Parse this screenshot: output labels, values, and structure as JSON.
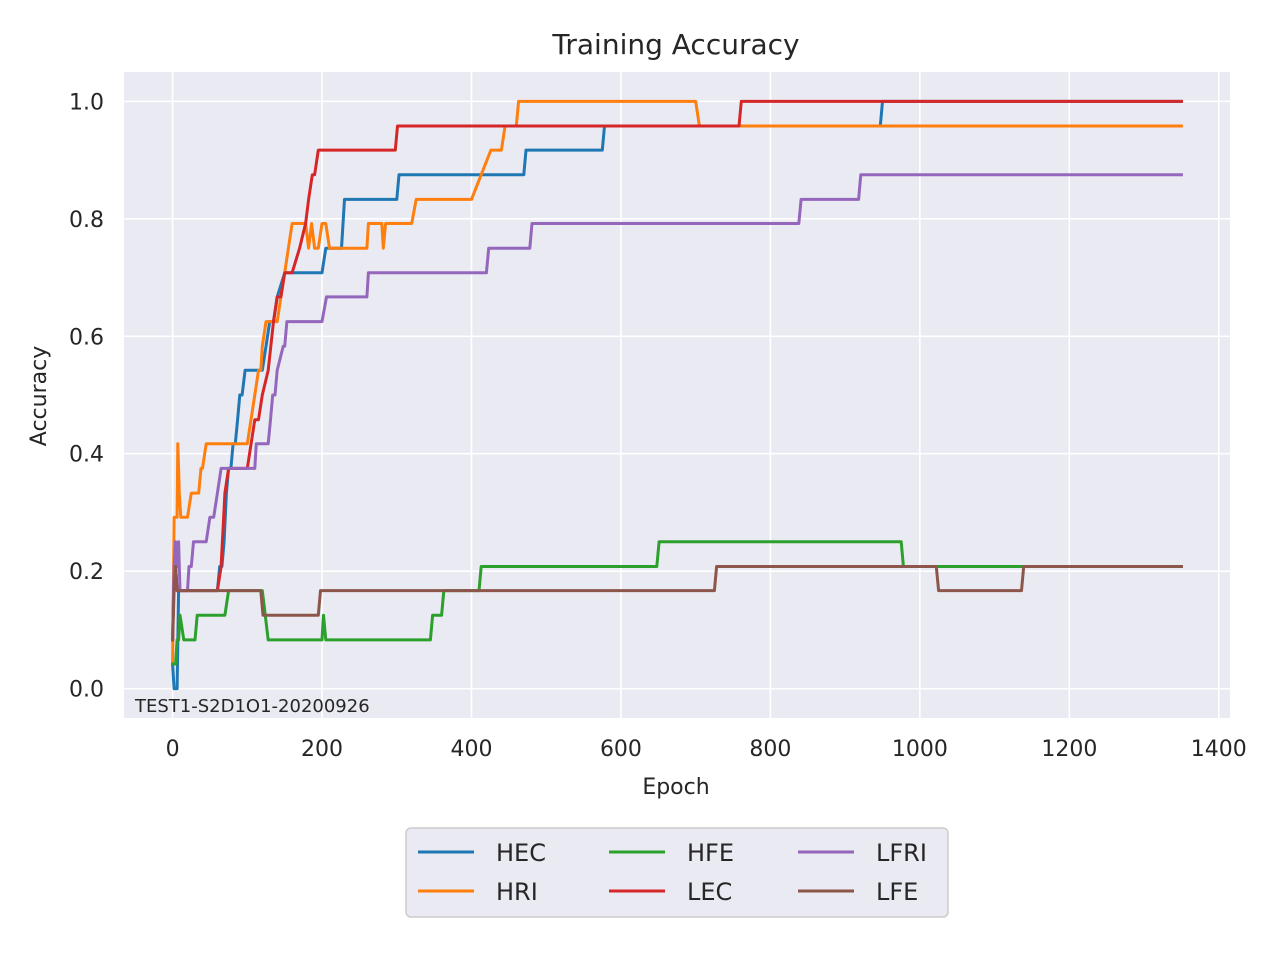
{
  "colors": {
    "background": "#eaeaf2",
    "grid": "#ffffff",
    "text": "#262626",
    "legend_frame": "#cccccc"
  },
  "chart_data": {
    "type": "line",
    "title": "Training Accuracy",
    "xlabel": "Epoch",
    "ylabel": "Accuracy",
    "annotation": "TEST1-S2D1O1-20200926",
    "xlim": [
      -65,
      1415
    ],
    "ylim": [
      -0.05,
      1.05
    ],
    "xticks": [
      0,
      200,
      400,
      600,
      800,
      1000,
      1200,
      1400
    ],
    "yticks": [
      0.0,
      0.2,
      0.4,
      0.6,
      0.8,
      1.0
    ],
    "xtick_labels": [
      "0",
      "200",
      "400",
      "600",
      "800",
      "1000",
      "1200",
      "1400"
    ],
    "ytick_labels": [
      "0.0",
      "0.2",
      "0.4",
      "0.6",
      "0.8",
      "1.0"
    ],
    "grid": true,
    "legend_position": "below-center",
    "legend_columns": 3,
    "series": [
      {
        "name": "HEC",
        "color": "#1f77b4",
        "x": [
          0,
          2,
          4,
          6,
          8,
          10,
          20,
          40,
          60,
          63,
          66,
          69,
          72,
          75,
          78,
          81,
          84,
          87,
          90,
          93,
          97,
          100,
          110,
          120,
          125,
          130,
          135,
          140,
          150,
          160,
          170,
          180,
          190,
          200,
          205,
          210,
          220,
          226,
          230,
          240,
          250,
          260,
          270,
          280,
          290,
          300,
          303,
          320,
          360,
          400,
          420,
          450,
          470,
          473,
          500,
          530,
          550,
          575,
          578,
          600,
          650,
          700,
          750,
          800,
          850,
          900,
          947,
          950,
          1000,
          1100,
          1200,
          1350
        ],
        "y": [
          0.042,
          0.0,
          0.0,
          0.0,
          0.167,
          0.167,
          0.167,
          0.167,
          0.167,
          0.208,
          0.208,
          0.25,
          0.333,
          0.375,
          0.375,
          0.417,
          0.417,
          0.458,
          0.5,
          0.5,
          0.542,
          0.542,
          0.542,
          0.542,
          0.583,
          0.625,
          0.625,
          0.667,
          0.708,
          0.708,
          0.708,
          0.708,
          0.708,
          0.708,
          0.75,
          0.75,
          0.75,
          0.75,
          0.833,
          0.833,
          0.833,
          0.833,
          0.833,
          0.833,
          0.833,
          0.833,
          0.875,
          0.875,
          0.875,
          0.875,
          0.875,
          0.875,
          0.875,
          0.917,
          0.917,
          0.917,
          0.917,
          0.917,
          0.958,
          0.958,
          0.958,
          0.958,
          0.958,
          0.958,
          0.958,
          0.958,
          0.958,
          1.0,
          1.0,
          1.0,
          1.0,
          1.0
        ]
      },
      {
        "name": "HRI",
        "color": "#ff7f0e",
        "x": [
          0,
          2,
          4,
          6,
          7,
          8,
          9,
          11,
          13,
          15,
          20,
          25,
          30,
          35,
          38,
          40,
          45,
          50,
          60,
          70,
          80,
          90,
          100,
          105,
          110,
          115,
          118,
          120,
          125,
          130,
          140,
          145,
          150,
          155,
          160,
          165,
          170,
          175,
          178,
          182,
          186,
          190,
          195,
          200,
          205,
          210,
          220,
          240,
          260,
          262,
          280,
          282,
          285,
          300,
          320,
          326,
          360,
          400,
          426,
          430,
          440,
          445,
          450,
          460,
          463,
          470,
          500,
          600,
          650,
          700,
          705,
          708,
          750,
          800,
          900,
          1000,
          1100,
          1200,
          1350
        ],
        "y": [
          0.042,
          0.292,
          0.292,
          0.292,
          0.417,
          0.375,
          0.333,
          0.292,
          0.292,
          0.292,
          0.292,
          0.333,
          0.333,
          0.333,
          0.375,
          0.375,
          0.417,
          0.417,
          0.417,
          0.417,
          0.417,
          0.417,
          0.417,
          0.458,
          0.5,
          0.542,
          0.542,
          0.583,
          0.625,
          0.625,
          0.625,
          0.667,
          0.708,
          0.75,
          0.792,
          0.792,
          0.792,
          0.792,
          0.792,
          0.75,
          0.792,
          0.75,
          0.75,
          0.792,
          0.792,
          0.75,
          0.75,
          0.75,
          0.75,
          0.792,
          0.792,
          0.75,
          0.792,
          0.792,
          0.792,
          0.833,
          0.833,
          0.833,
          0.917,
          0.917,
          0.917,
          0.958,
          0.958,
          0.958,
          1.0,
          1.0,
          1.0,
          1.0,
          1.0,
          1.0,
          0.958,
          0.958,
          0.958,
          0.958,
          0.958,
          0.958,
          0.958,
          0.958,
          0.958
        ]
      },
      {
        "name": "HFE",
        "color": "#2ca02c",
        "x": [
          0,
          2,
          4,
          6,
          8,
          10,
          15,
          20,
          25,
          30,
          33,
          40,
          50,
          60,
          70,
          75,
          80,
          100,
          110,
          120,
          128,
          140,
          160,
          180,
          200,
          202,
          205,
          220,
          250,
          300,
          330,
          345,
          348,
          355,
          360,
          363,
          380,
          400,
          410,
          413,
          450,
          500,
          550,
          600,
          648,
          651,
          700,
          750,
          800,
          850,
          900,
          950,
          975,
          978,
          1000,
          1050,
          1100,
          1136,
          1139,
          1200,
          1350
        ],
        "y": [
          0.042,
          0.042,
          0.042,
          0.083,
          0.083,
          0.125,
          0.083,
          0.083,
          0.083,
          0.083,
          0.125,
          0.125,
          0.125,
          0.125,
          0.125,
          0.167,
          0.167,
          0.167,
          0.167,
          0.167,
          0.083,
          0.083,
          0.083,
          0.083,
          0.083,
          0.125,
          0.083,
          0.083,
          0.083,
          0.083,
          0.083,
          0.083,
          0.125,
          0.125,
          0.125,
          0.167,
          0.167,
          0.167,
          0.167,
          0.208,
          0.208,
          0.208,
          0.208,
          0.208,
          0.208,
          0.25,
          0.25,
          0.25,
          0.25,
          0.25,
          0.25,
          0.25,
          0.25,
          0.208,
          0.208,
          0.208,
          0.208,
          0.208,
          0.208,
          0.208,
          0.208
        ]
      },
      {
        "name": "LEC",
        "color": "#d62728",
        "x": [
          0,
          2,
          4,
          6,
          8,
          10,
          20,
          30,
          37,
          40,
          50,
          60,
          65,
          70,
          75,
          80,
          90,
          100,
          110,
          115,
          120,
          128,
          135,
          140,
          145,
          150,
          160,
          170,
          178,
          182,
          187,
          190,
          195,
          200,
          240,
          280,
          298,
          301,
          350,
          400,
          450,
          500,
          550,
          600,
          650,
          700,
          750,
          758,
          761,
          800,
          900,
          1000,
          1100,
          1200,
          1350
        ],
        "y": [
          0.083,
          0.208,
          0.208,
          0.167,
          0.167,
          0.167,
          0.167,
          0.167,
          0.167,
          0.167,
          0.167,
          0.167,
          0.208,
          0.333,
          0.375,
          0.375,
          0.375,
          0.375,
          0.458,
          0.458,
          0.5,
          0.542,
          0.625,
          0.667,
          0.667,
          0.708,
          0.708,
          0.75,
          0.792,
          0.833,
          0.875,
          0.875,
          0.917,
          0.917,
          0.917,
          0.917,
          0.917,
          0.958,
          0.958,
          0.958,
          0.958,
          0.958,
          0.958,
          0.958,
          0.958,
          0.958,
          0.958,
          0.958,
          1.0,
          1.0,
          1.0,
          1.0,
          1.0,
          1.0,
          1.0
        ]
      },
      {
        "name": "LFRI",
        "color": "#9467bd",
        "x": [
          0,
          2,
          4,
          6,
          8,
          10,
          15,
          20,
          22,
          25,
          28,
          40,
          45,
          50,
          55,
          60,
          65,
          70,
          80,
          90,
          100,
          110,
          112,
          120,
          128,
          131,
          134,
          137,
          140,
          148,
          150,
          153,
          160,
          180,
          200,
          206,
          220,
          240,
          260,
          262,
          300,
          350,
          400,
          420,
          423,
          450,
          478,
          481,
          500,
          550,
          600,
          650,
          700,
          750,
          800,
          838,
          841,
          870,
          900,
          918,
          921,
          950,
          1000,
          1100,
          1200,
          1350
        ],
        "y": [
          0.083,
          0.208,
          0.25,
          0.208,
          0.25,
          0.167,
          0.167,
          0.167,
          0.208,
          0.208,
          0.25,
          0.25,
          0.25,
          0.292,
          0.292,
          0.333,
          0.375,
          0.375,
          0.375,
          0.375,
          0.375,
          0.375,
          0.417,
          0.417,
          0.417,
          0.458,
          0.5,
          0.5,
          0.542,
          0.583,
          0.583,
          0.625,
          0.625,
          0.625,
          0.625,
          0.667,
          0.667,
          0.667,
          0.667,
          0.708,
          0.708,
          0.708,
          0.708,
          0.708,
          0.75,
          0.75,
          0.75,
          0.792,
          0.792,
          0.792,
          0.792,
          0.792,
          0.792,
          0.792,
          0.792,
          0.792,
          0.833,
          0.833,
          0.833,
          0.833,
          0.875,
          0.875,
          0.875,
          0.875,
          0.875,
          0.875
        ]
      },
      {
        "name": "LFE",
        "color": "#8c564b",
        "x": [
          0,
          2,
          4,
          6,
          8,
          10,
          20,
          40,
          60,
          80,
          100,
          118,
          121,
          150,
          180,
          195,
          198,
          250,
          300,
          350,
          400,
          450,
          500,
          550,
          600,
          650,
          700,
          725,
          728,
          800,
          900,
          1000,
          1022,
          1025,
          1080,
          1136,
          1139,
          1200,
          1350
        ],
        "y": [
          0.083,
          0.167,
          0.208,
          0.167,
          0.167,
          0.167,
          0.167,
          0.167,
          0.167,
          0.167,
          0.167,
          0.167,
          0.125,
          0.125,
          0.125,
          0.125,
          0.167,
          0.167,
          0.167,
          0.167,
          0.167,
          0.167,
          0.167,
          0.167,
          0.167,
          0.167,
          0.167,
          0.167,
          0.208,
          0.208,
          0.208,
          0.208,
          0.208,
          0.167,
          0.167,
          0.167,
          0.208,
          0.208,
          0.208
        ]
      }
    ]
  }
}
